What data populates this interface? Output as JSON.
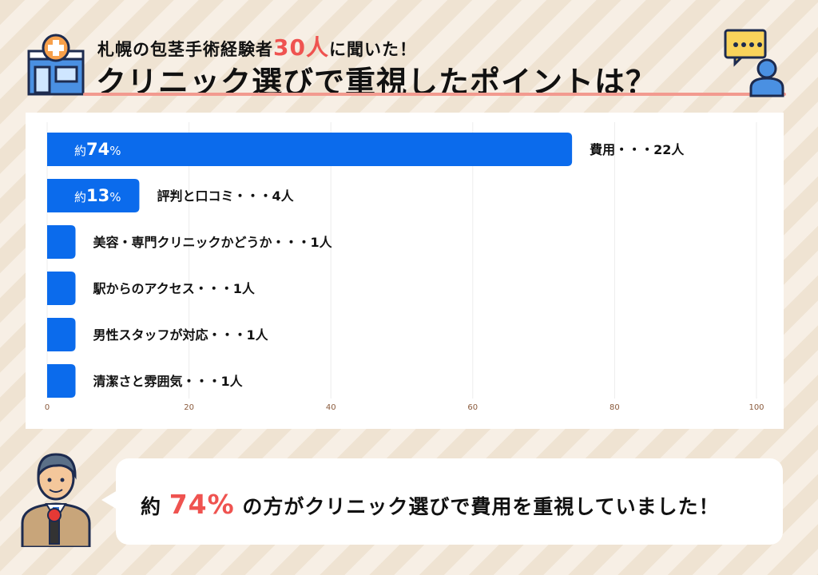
{
  "header": {
    "subtitle_pre": "札幌の包茎手術経験者",
    "subtitle_count": "30人",
    "subtitle_post": "に聞いた！",
    "title": "クリニック選びで重視したポイントは？"
  },
  "icons": {
    "left": "clinic-building-icon",
    "right": "person-speech-bubble-icon",
    "presenter": "reporter-with-microphone-icon"
  },
  "colors": {
    "bar": "#0b6bec",
    "accent": "#ef5350",
    "underline": "#f29a8f",
    "tick": "#8a5a3c"
  },
  "chart_data": {
    "type": "bar",
    "orientation": "horizontal",
    "categories": [
      "費用・・・22人",
      "評判と口コミ・・・4人",
      "美容・専門クリニックかどうか・・・1人",
      "駅からのアクセス・・・1人",
      "男性スタッフが対応・・・1人",
      "清潔さと雰囲気・・・1人"
    ],
    "values": [
      74,
      13,
      4,
      4,
      4,
      4
    ],
    "value_labels": [
      {
        "prefix": "約",
        "value": "74",
        "suffix": "%"
      },
      {
        "prefix": "約",
        "value": "13",
        "suffix": "%"
      },
      null,
      null,
      null,
      null
    ],
    "xlim": [
      0,
      100
    ],
    "xticks": [
      0,
      20,
      40,
      60,
      80,
      100
    ],
    "grid": true
  },
  "summary": {
    "pre": "約 ",
    "value": "74%",
    "post": " の方がクリニック選びで費用を重視していました！"
  }
}
